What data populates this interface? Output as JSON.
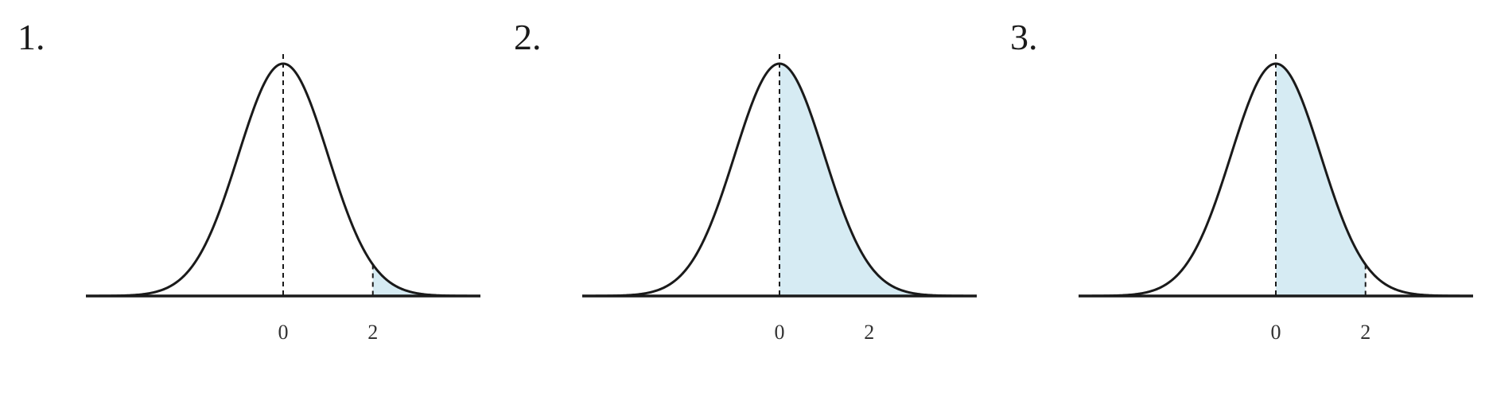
{
  "chart_data": [
    {
      "type": "area",
      "panel_label": "1.",
      "curve": "standard-normal-density",
      "xlim": [
        -4.4,
        4.4
      ],
      "mean": 0,
      "x_ticks": [
        {
          "value": 0,
          "label": "0"
        },
        {
          "value": 2,
          "label": "2"
        }
      ],
      "shaded_region": {
        "from": 2,
        "to": 4.4
      },
      "dashed_markers": [
        0,
        2
      ],
      "shade_color": "#d6ebf3",
      "curve_color": "#1a1a1a"
    },
    {
      "type": "area",
      "panel_label": "2.",
      "curve": "standard-normal-density",
      "xlim": [
        -4.4,
        4.4
      ],
      "mean": 0,
      "x_ticks": [
        {
          "value": 0,
          "label": "0"
        },
        {
          "value": 2,
          "label": "2"
        }
      ],
      "shaded_region": {
        "from": 0,
        "to": 4.4
      },
      "dashed_markers": [
        0
      ],
      "shade_color": "#d6ebf3",
      "curve_color": "#1a1a1a"
    },
    {
      "type": "area",
      "panel_label": "3.",
      "curve": "standard-normal-density",
      "xlim": [
        -4.4,
        4.4
      ],
      "mean": 0,
      "x_ticks": [
        {
          "value": 0,
          "label": "0"
        },
        {
          "value": 2,
          "label": "2"
        }
      ],
      "shaded_region": {
        "from": 0,
        "to": 2
      },
      "dashed_markers": [
        0,
        2
      ],
      "shade_color": "#d6ebf3",
      "curve_color": "#1a1a1a"
    }
  ]
}
